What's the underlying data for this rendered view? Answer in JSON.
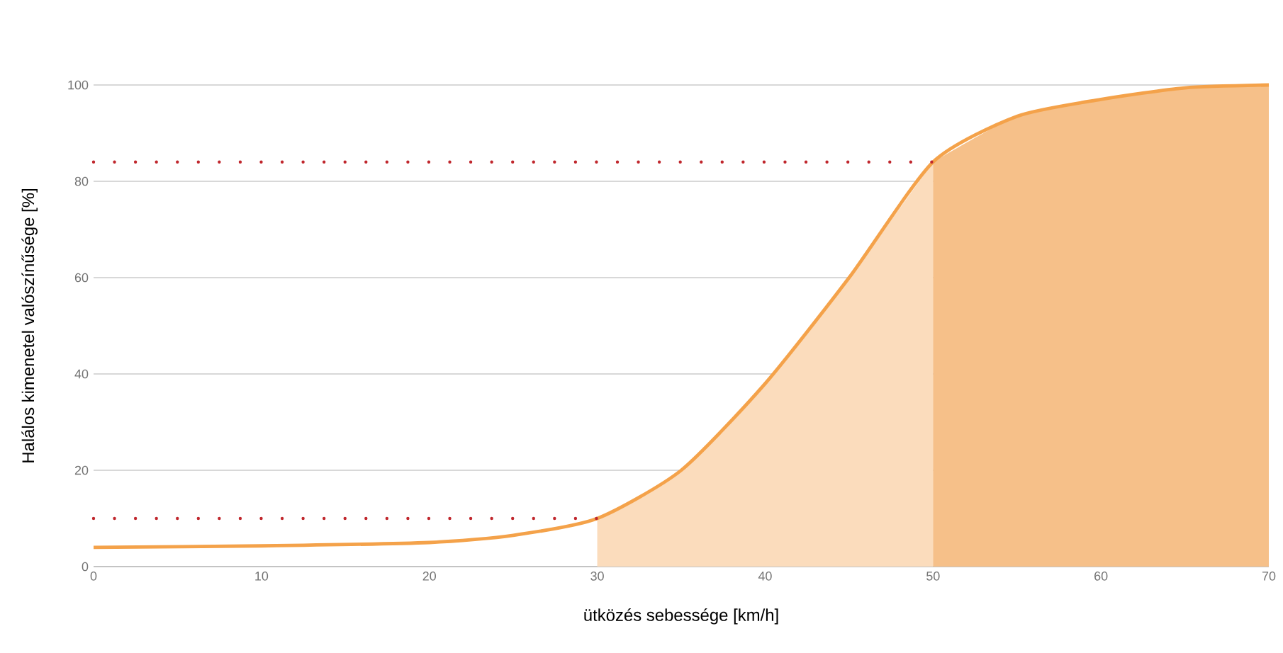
{
  "chart_data": {
    "type": "line",
    "xlabel": "ütközés sebessége [km/h]",
    "ylabel": "Halálos kimenetel valószínűsége [%]",
    "xlim": [
      0,
      70
    ],
    "ylim": [
      0,
      100
    ],
    "xticks": [
      0,
      10,
      20,
      30,
      40,
      50,
      60,
      70
    ],
    "yticks": [
      0,
      20,
      40,
      60,
      80,
      100
    ],
    "grid": "y",
    "series": [
      {
        "type": "area",
        "color": "#fbdcbc",
        "x": [
          30,
          35,
          40,
          45,
          50
        ],
        "values": [
          10,
          20,
          38,
          60,
          84
        ]
      },
      {
        "type": "area",
        "color": "#f6c089",
        "x": [
          50,
          55,
          60,
          65,
          70
        ],
        "values": [
          84,
          93.5,
          97,
          99.4,
          100
        ]
      },
      {
        "type": "line",
        "color": "#f4a24a",
        "line_style": "solid",
        "x": [
          0,
          10,
          20,
          25,
          30,
          35,
          40,
          45,
          50,
          55,
          60,
          65,
          70
        ],
        "values": [
          4,
          4.3,
          5,
          6.5,
          10,
          20,
          38,
          60,
          84,
          93.5,
          97,
          99.4,
          100
        ]
      },
      {
        "type": "line",
        "color": "#c0272d",
        "line_style": "dotted",
        "x": [
          0,
          30
        ],
        "values": [
          10,
          10
        ]
      },
      {
        "type": "line",
        "color": "#c0272d",
        "line_style": "dotted",
        "x": [
          0,
          50
        ],
        "values": [
          84,
          84
        ]
      }
    ]
  }
}
